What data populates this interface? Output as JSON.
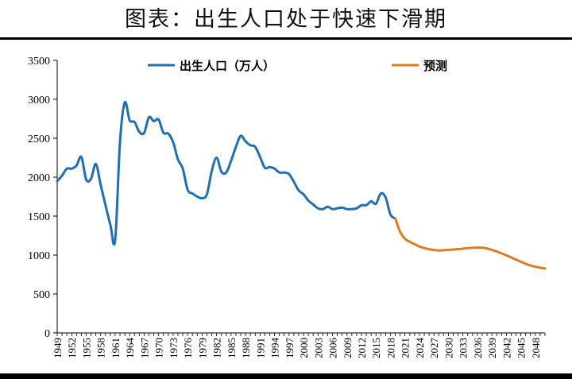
{
  "title": "图表：出生人口处于快速下滑期",
  "chart_data": {
    "type": "line",
    "title": "图表：出生人口处于快速下滑期",
    "xlabel": "",
    "ylabel": "",
    "xlim": [
      1949,
      2050
    ],
    "ylim": [
      0,
      3500
    ],
    "y_ticks": [
      0,
      500,
      1000,
      1500,
      2000,
      2500,
      3000,
      3500
    ],
    "x_ticks": [
      1949,
      1952,
      1955,
      1958,
      1961,
      1964,
      1967,
      1970,
      1973,
      1976,
      1979,
      1982,
      1985,
      1988,
      1991,
      1994,
      1997,
      2000,
      2003,
      2006,
      2009,
      2012,
      2015,
      2018,
      2021,
      2024,
      2027,
      2030,
      2033,
      2036,
      2039,
      2042,
      2045,
      2048
    ],
    "grid": false,
    "legend_position": "top",
    "series": [
      {
        "name": "出生人口（万人）",
        "color": "#1f6fb5",
        "x": [
          1949,
          1950,
          1951,
          1952,
          1953,
          1954,
          1955,
          1956,
          1957,
          1958,
          1959,
          1960,
          1961,
          1962,
          1963,
          1964,
          1965,
          1966,
          1967,
          1968,
          1969,
          1970,
          1971,
          1972,
          1973,
          1974,
          1975,
          1976,
          1977,
          1978,
          1979,
          1980,
          1981,
          1982,
          1983,
          1984,
          1985,
          1986,
          1987,
          1988,
          1989,
          1990,
          1991,
          1992,
          1993,
          1994,
          1995,
          1996,
          1997,
          1998,
          1999,
          2000,
          2001,
          2002,
          2003,
          2004,
          2005,
          2006,
          2007,
          2008,
          2009,
          2010,
          2011,
          2012,
          2013,
          2014,
          2015,
          2016,
          2017,
          2018,
          2019
        ],
        "values": [
          1950,
          2020,
          2110,
          2110,
          2150,
          2260,
          1970,
          1980,
          2170,
          1900,
          1640,
          1390,
          1190,
          2450,
          2960,
          2730,
          2710,
          2580,
          2570,
          2770,
          2720,
          2740,
          2570,
          2560,
          2450,
          2230,
          2110,
          1840,
          1790,
          1750,
          1730,
          1780,
          2080,
          2250,
          2070,
          2060,
          2210,
          2390,
          2530,
          2460,
          2410,
          2390,
          2260,
          2120,
          2130,
          2110,
          2060,
          2060,
          2040,
          1940,
          1830,
          1780,
          1700,
          1650,
          1600,
          1590,
          1620,
          1590,
          1600,
          1610,
          1590,
          1590,
          1600,
          1640,
          1640,
          1690,
          1660,
          1790,
          1740,
          1520,
          1470
        ]
      },
      {
        "name": "预测",
        "color": "#e07b1f",
        "x": [
          2019,
          2020,
          2021,
          2022,
          2023,
          2024,
          2025,
          2026,
          2027,
          2028,
          2029,
          2030,
          2031,
          2032,
          2033,
          2034,
          2035,
          2036,
          2037,
          2038,
          2039,
          2040,
          2041,
          2042,
          2043,
          2044,
          2045,
          2046,
          2047,
          2048,
          2049,
          2050
        ],
        "values": [
          1470,
          1300,
          1210,
          1170,
          1140,
          1110,
          1090,
          1075,
          1065,
          1060,
          1062,
          1066,
          1071,
          1076,
          1082,
          1088,
          1093,
          1096,
          1094,
          1084,
          1066,
          1046,
          1022,
          996,
          970,
          942,
          914,
          888,
          866,
          850,
          838,
          828
        ]
      }
    ]
  }
}
